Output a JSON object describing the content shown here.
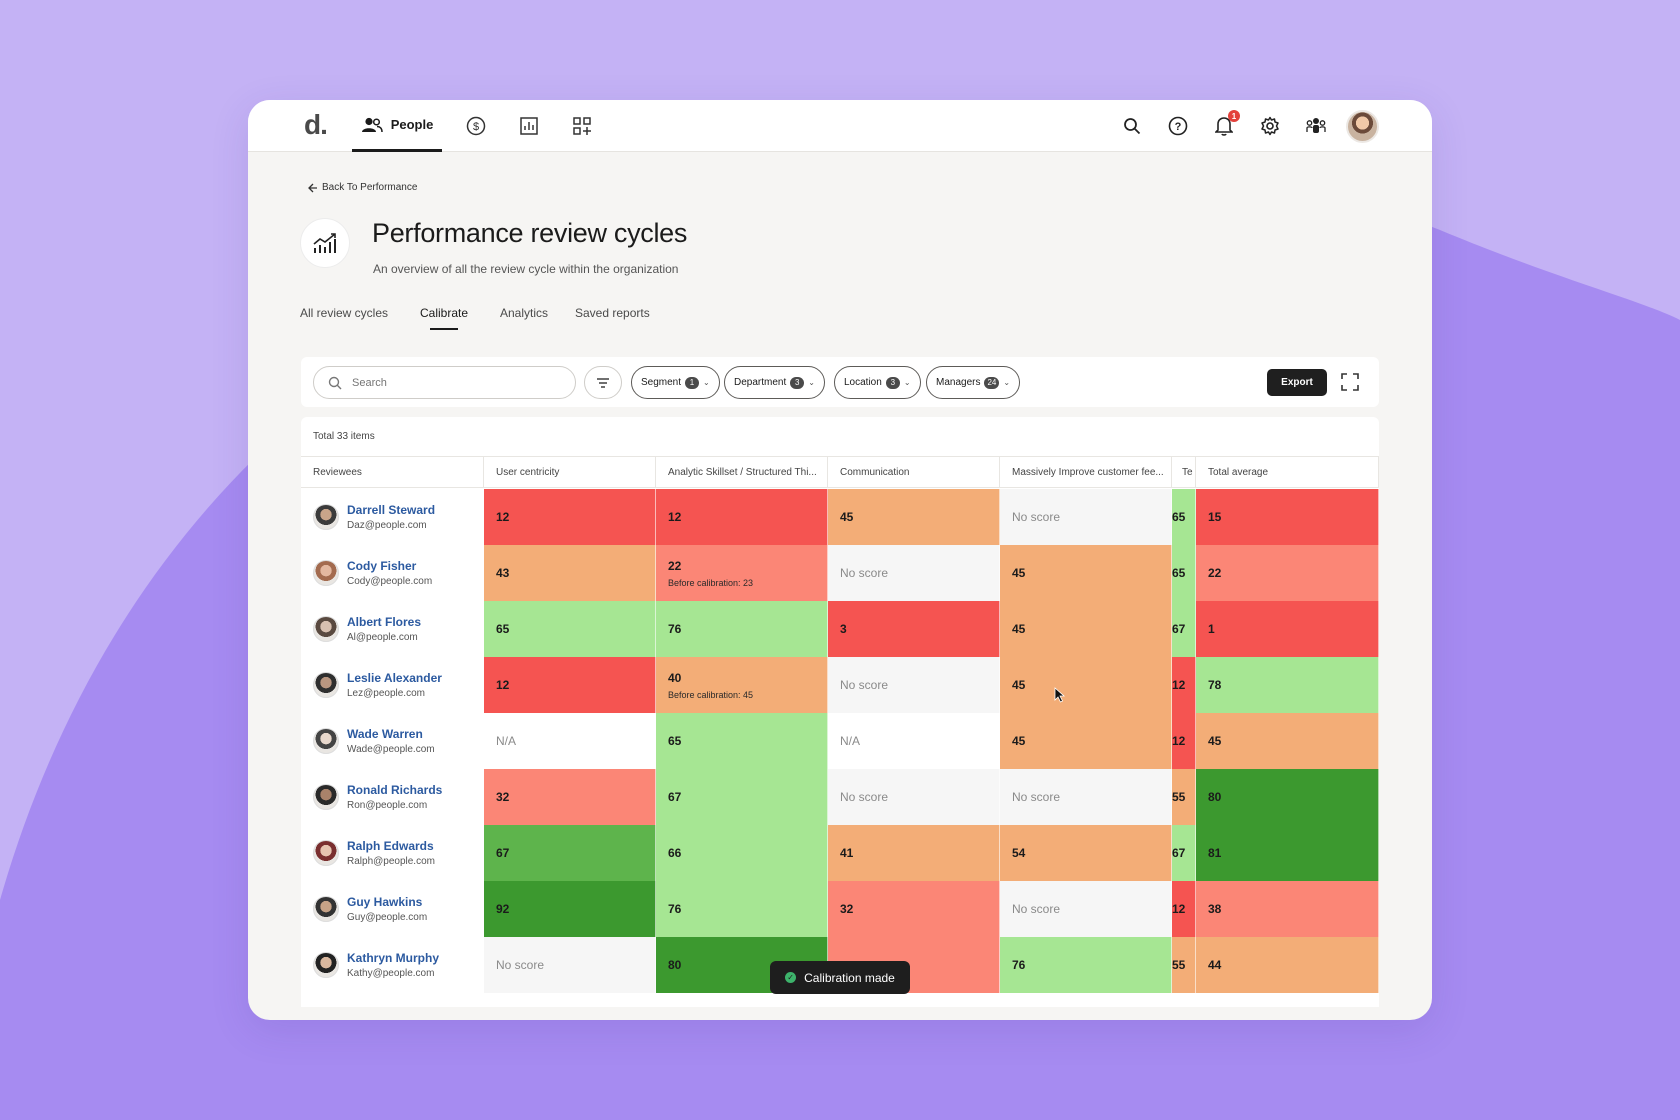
{
  "colors": {
    "background": "#c4b2f5",
    "blob": "#a68bf1",
    "red": "#f55451",
    "salmon": "#fb8676",
    "orange": "#f3ad77",
    "light_green": "#a6e693",
    "green": "#5eb44c",
    "dark_green": "#3c992f",
    "no_score": "#f6f6f6",
    "link": "#2c5aa0"
  },
  "topbar": {
    "logo": "d.",
    "people_label": "People",
    "nav_icons": [
      "dollar-icon",
      "chart-icon",
      "apps-icon"
    ],
    "right_icons": [
      "search-icon",
      "help-icon",
      "bell-icon",
      "gear-icon",
      "team-icon"
    ],
    "notification_count": "1"
  },
  "header": {
    "back_label": "Back To  Performance",
    "title": "Performance review cycles",
    "subtitle": "An overview of all the review cycle within the organization"
  },
  "tabs": [
    {
      "label": "All  review cycles",
      "active": false
    },
    {
      "label": "Calibrate",
      "active": true
    },
    {
      "label": "Analytics",
      "active": false
    },
    {
      "label": "Saved reports",
      "active": false
    }
  ],
  "toolbar": {
    "search_placeholder": "Search",
    "chips": [
      {
        "label": "Segment",
        "count": "1"
      },
      {
        "label": "Department",
        "count": "3"
      },
      {
        "label": "Location",
        "count": "3"
      },
      {
        "label": "Managers",
        "count": "24"
      }
    ],
    "export_label": "Export"
  },
  "table": {
    "total_label": "Total 33 items",
    "columns": [
      "Reviewees",
      "User centricity",
      "Analytic Skillset / Structured Thi...",
      "Communication",
      "Massively Improve customer fee...",
      "Te",
      "Total average"
    ],
    "rows": [
      {
        "name": "Darrell Steward",
        "email": "Daz@people.com",
        "scores": [
          {
            "v": "12",
            "c": "red"
          },
          {
            "v": "12",
            "c": "red"
          },
          {
            "v": "45",
            "c": "orange"
          },
          {
            "v": "No score",
            "c": "no_score"
          },
          {
            "v": "65",
            "c": "light_green"
          },
          {
            "v": "15",
            "c": "red"
          }
        ]
      },
      {
        "name": "Cody Fisher",
        "email": "Cody@people.com",
        "scores": [
          {
            "v": "43",
            "c": "orange"
          },
          {
            "v": "22",
            "c": "salmon",
            "before": "Before calibration: 23"
          },
          {
            "v": "No score",
            "c": "no_score"
          },
          {
            "v": "45",
            "c": "orange"
          },
          {
            "v": "65",
            "c": "light_green"
          },
          {
            "v": "22",
            "c": "salmon"
          }
        ]
      },
      {
        "name": "Albert Flores",
        "email": "Al@people.com",
        "scores": [
          {
            "v": "65",
            "c": "light_green"
          },
          {
            "v": "76",
            "c": "light_green"
          },
          {
            "v": "3",
            "c": "red"
          },
          {
            "v": "45",
            "c": "orange"
          },
          {
            "v": "67",
            "c": "light_green"
          },
          {
            "v": "1",
            "c": "red"
          }
        ]
      },
      {
        "name": "Leslie Alexander",
        "email": "Lez@people.com",
        "scores": [
          {
            "v": "12",
            "c": "red"
          },
          {
            "v": "40",
            "c": "orange",
            "before": "Before calibration: 45"
          },
          {
            "v": "No score",
            "c": "no_score"
          },
          {
            "v": "45",
            "c": "orange"
          },
          {
            "v": "12",
            "c": "red"
          },
          {
            "v": "78",
            "c": "light_green"
          }
        ]
      },
      {
        "name": "Wade Warren",
        "email": "Wade@people.com",
        "scores": [
          {
            "v": "N/A",
            "c": "white"
          },
          {
            "v": "65",
            "c": "light_green"
          },
          {
            "v": "N/A",
            "c": "white"
          },
          {
            "v": "45",
            "c": "orange"
          },
          {
            "v": "12",
            "c": "red"
          },
          {
            "v": "45",
            "c": "orange"
          }
        ]
      },
      {
        "name": "Ronald Richards",
        "email": "Ron@people.com",
        "scores": [
          {
            "v": "32",
            "c": "salmon"
          },
          {
            "v": "67",
            "c": "light_green"
          },
          {
            "v": "No score",
            "c": "no_score"
          },
          {
            "v": "No score",
            "c": "no_score"
          },
          {
            "v": "55",
            "c": "orange"
          },
          {
            "v": "80",
            "c": "dark_green"
          }
        ]
      },
      {
        "name": "Ralph Edwards",
        "email": "Ralph@people.com",
        "scores": [
          {
            "v": "67",
            "c": "green"
          },
          {
            "v": "66",
            "c": "light_green"
          },
          {
            "v": "41",
            "c": "orange"
          },
          {
            "v": "54",
            "c": "orange"
          },
          {
            "v": "67",
            "c": "light_green"
          },
          {
            "v": "81",
            "c": "dark_green"
          }
        ]
      },
      {
        "name": "Guy Hawkins",
        "email": "Guy@people.com",
        "scores": [
          {
            "v": "92",
            "c": "dark_green"
          },
          {
            "v": "76",
            "c": "light_green"
          },
          {
            "v": "32",
            "c": "salmon"
          },
          {
            "v": "No score",
            "c": "no_score"
          },
          {
            "v": "12",
            "c": "red"
          },
          {
            "v": "38",
            "c": "salmon"
          }
        ]
      },
      {
        "name": "Kathryn Murphy",
        "email": "Kathy@people.com",
        "scores": [
          {
            "v": "No score",
            "c": "no_score"
          },
          {
            "v": "80",
            "c": "dark_green"
          },
          {
            "v": "",
            "c": "salmon"
          },
          {
            "v": "76",
            "c": "light_green"
          },
          {
            "v": "55",
            "c": "orange"
          },
          {
            "v": "44",
            "c": "orange"
          }
        ]
      }
    ]
  },
  "toast": {
    "label": "Calibration made"
  }
}
